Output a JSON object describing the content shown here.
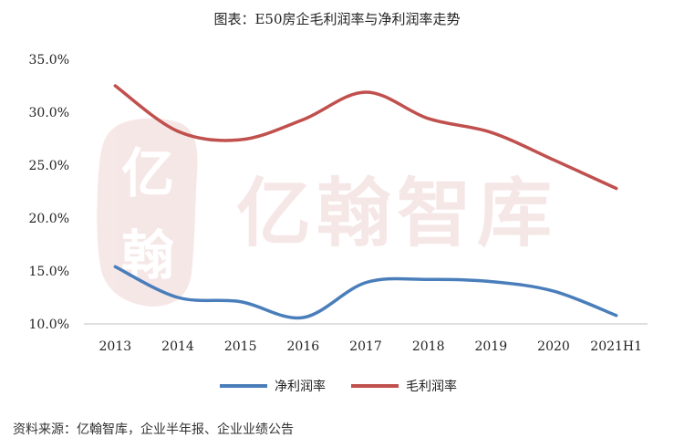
{
  "chart_data": {
    "type": "line",
    "title": "图表：E50房企毛利润率与净利润率走势",
    "categories": [
      "2013",
      "2014",
      "2015",
      "2016",
      "2017",
      "2018",
      "2019",
      "2020",
      "2021H1"
    ],
    "series": [
      {
        "name": "净利润率",
        "color": "#4a7ebb",
        "values": [
          15.4,
          12.5,
          12.1,
          10.6,
          13.9,
          14.2,
          14.0,
          13.1,
          10.8
        ]
      },
      {
        "name": "毛利润率",
        "color": "#c0504d",
        "values": [
          32.5,
          28.2,
          27.4,
          29.3,
          31.9,
          29.4,
          28.1,
          25.5,
          22.8
        ]
      }
    ],
    "ylim": [
      10,
      35
    ],
    "yticks": [
      10,
      15,
      20,
      25,
      30,
      35
    ],
    "ytick_labels": [
      "10.0%",
      "15.0%",
      "20.0%",
      "25.0%",
      "30.0%",
      "35.0%"
    ],
    "grid": false,
    "legend": "bottom",
    "watermark": "亿翰智库"
  },
  "source": "资料来源：亿翰智库，企业半年报、企业业绩公告"
}
